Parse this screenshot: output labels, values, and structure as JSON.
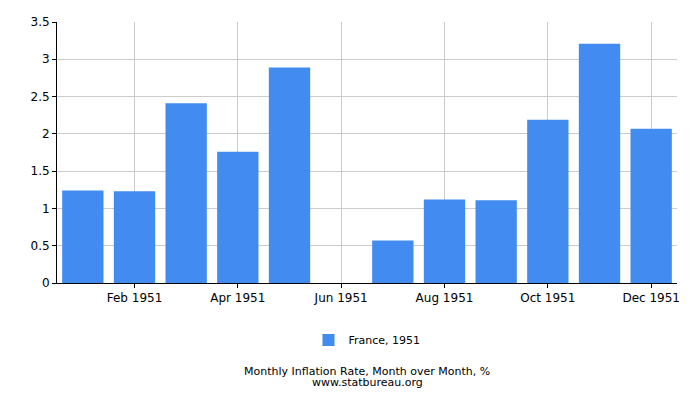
{
  "chart_data": {
    "type": "bar",
    "title": "Monthly Inflation Rate, Month over Month, %",
    "subtitle": "www.statbureau.org",
    "categories": [
      null,
      "Feb 1951",
      null,
      "Apr 1951",
      null,
      "Jun 1951",
      null,
      "Aug 1951",
      null,
      "Oct 1951",
      null,
      "Dec 1951"
    ],
    "series": [
      {
        "name": "France, 1951",
        "color": "#428bf0",
        "values": [
          1.24,
          1.23,
          2.41,
          1.76,
          2.89,
          0,
          0.57,
          1.12,
          1.11,
          2.19,
          3.21,
          2.07
        ]
      }
    ],
    "ylim": [
      0,
      3.5
    ],
    "yticks": [
      0,
      0.5,
      1,
      1.5,
      2,
      2.5,
      3,
      3.5
    ],
    "grid": true,
    "legend": "bottom"
  }
}
